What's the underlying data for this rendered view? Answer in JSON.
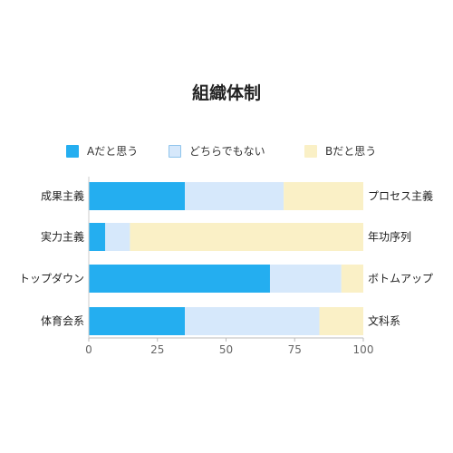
{
  "chart_data": {
    "type": "bar",
    "orientation": "horizontal",
    "stacked": true,
    "title": "組織体制",
    "categories": [
      "成果主義",
      "実力主義",
      "トップダウン",
      "体育会系"
    ],
    "right_labels": [
      "プロセス主義",
      "年功序列",
      "ボトムアップ",
      "文科系"
    ],
    "series": [
      {
        "name": "Aだと思う",
        "color": "#24aef0",
        "values": [
          35,
          6,
          66,
          35
        ]
      },
      {
        "name": "どちらでもない",
        "color": "#d6e8fb",
        "values": [
          36,
          9,
          26,
          49
        ]
      },
      {
        "name": "Bだと思う",
        "color": "#faf0c6",
        "values": [
          29,
          85,
          8,
          16
        ]
      }
    ],
    "xlim": [
      0,
      100
    ],
    "xticks": [
      "0",
      "25",
      "50",
      "75",
      "100"
    ],
    "legend_position": "top",
    "grid": false
  }
}
